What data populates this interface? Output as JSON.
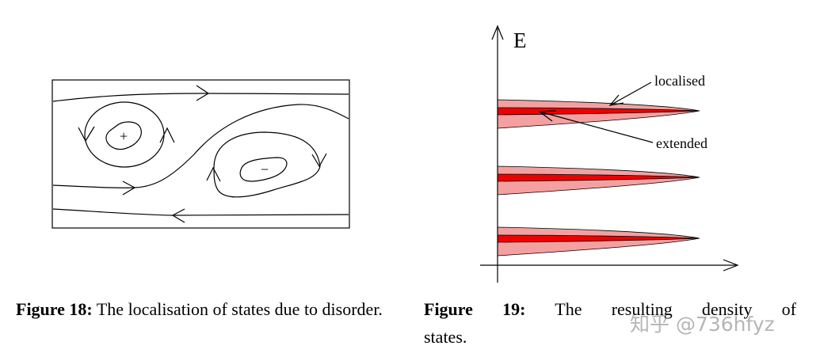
{
  "figure18": {
    "vortex_signs": [
      "+",
      "−"
    ],
    "caption_label": "Figure 18:",
    "caption_text": "The localisation of states due to disorder."
  },
  "figure19": {
    "axis_label": "E",
    "annotations": [
      "localised",
      "extended"
    ],
    "caption_label": "Figure 19:",
    "caption_text_line1": "The resulting density of",
    "caption_text_line2": "states.",
    "colors": {
      "localised": "#f4a0a0",
      "extended": "#ee0000",
      "outline": "#000000"
    }
  },
  "watermark": "知乎 @736hfyz"
}
